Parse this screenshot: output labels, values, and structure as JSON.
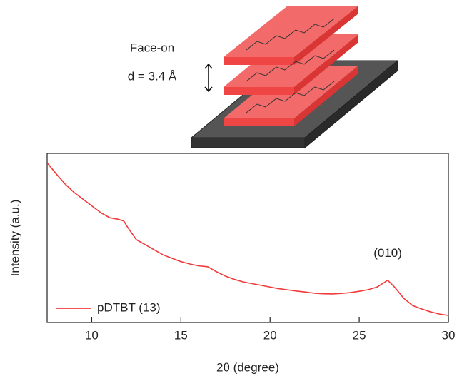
{
  "illustration": {
    "label": "Face-on",
    "spacing": "d = 3.4 Å"
  },
  "chart_data": {
    "type": "line",
    "xlabel": "2θ (degree)",
    "ylabel": "Intensity (a.u.)",
    "xlim": [
      7.5,
      30
    ],
    "xticks": [
      10,
      15,
      20,
      25,
      30
    ],
    "ylim": [
      0,
      100
    ],
    "legend": "lower left",
    "annotations": [
      "(010)"
    ],
    "series": [
      {
        "name": "pDTBT (13)",
        "color": "#f03a3a",
        "x": [
          7.5,
          8,
          8.5,
          9,
          9.5,
          10,
          10.5,
          11,
          11.5,
          11.8,
          12,
          12.5,
          13,
          13.5,
          14,
          14.5,
          15,
          15.5,
          16,
          16.5,
          17,
          17.5,
          18,
          18.5,
          19,
          19.5,
          20,
          20.5,
          21,
          21.5,
          22,
          22.5,
          23,
          23.5,
          24,
          24.5,
          25,
          25.5,
          26,
          26.3,
          26.6,
          27,
          27.5,
          28,
          28.5,
          29,
          29.5,
          30
        ],
        "values": [
          94.5,
          88,
          82,
          77,
          73,
          69,
          65,
          62,
          61,
          60,
          56.5,
          49,
          46,
          43,
          40,
          38,
          36,
          34.6,
          33.5,
          33,
          30,
          27.4,
          25.5,
          24,
          23,
          22,
          21,
          20,
          19.3,
          18.6,
          18,
          17.3,
          17,
          16.9,
          17.2,
          17.7,
          18.5,
          19.4,
          21,
          23,
          25,
          20.7,
          14.3,
          10,
          8,
          6.3,
          5,
          4.2
        ]
      }
    ]
  }
}
